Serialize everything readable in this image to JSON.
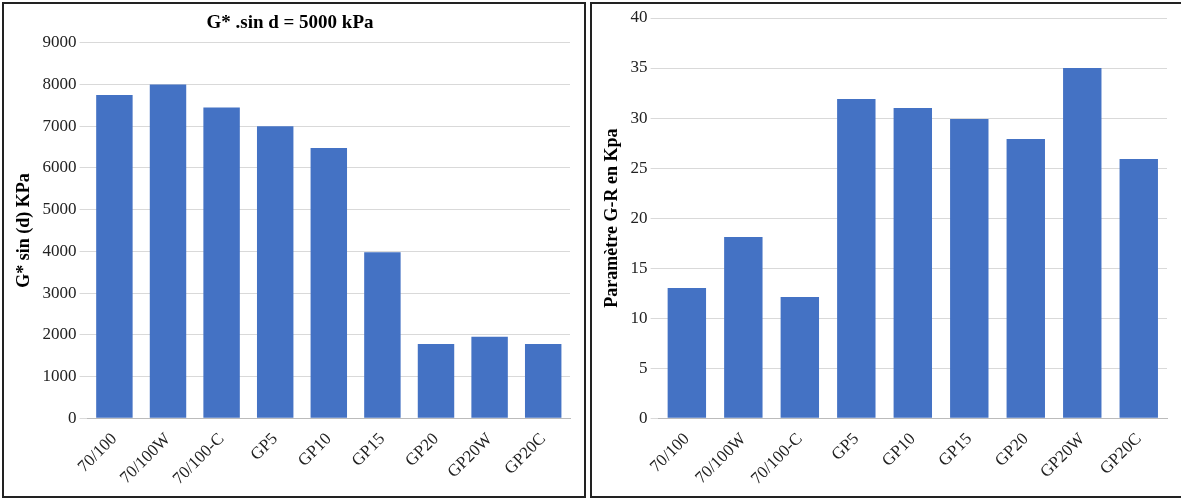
{
  "chart_data": [
    {
      "type": "bar",
      "title": "G* .sin d = 5000 kPa",
      "ylabel": "G* sin (d) KPa",
      "categories": [
        "70/100",
        "70/100W",
        "70/100-C",
        "GP5",
        "GP10",
        "GP15",
        "GP20",
        "GP20W",
        "GP20C"
      ],
      "values": [
        7750,
        8000,
        7450,
        7000,
        6480,
        3980,
        1780,
        1950,
        1780
      ],
      "color": "#4472c4",
      "ylim": [
        0,
        9000
      ],
      "yticks": [
        0,
        1000,
        2000,
        3000,
        4000,
        5000,
        6000,
        7000,
        8000,
        9000
      ],
      "grid": "y",
      "legend": false
    },
    {
      "type": "bar",
      "ylabel": "Paramètre G-R en Kpa",
      "categories": [
        "70/100",
        "70/100W",
        "70/100-C",
        "GP5",
        "GP10",
        "GP15",
        "GP20",
        "GP20W",
        "GP20C"
      ],
      "values": [
        13,
        18.1,
        12.1,
        31.9,
        31,
        29.9,
        27.9,
        35,
        25.9
      ],
      "color": "#4472c4",
      "ylim": [
        0,
        40
      ],
      "yticks": [
        0,
        5,
        10,
        15,
        20,
        25,
        30,
        35,
        40
      ],
      "grid": "y",
      "legend": false
    }
  ]
}
